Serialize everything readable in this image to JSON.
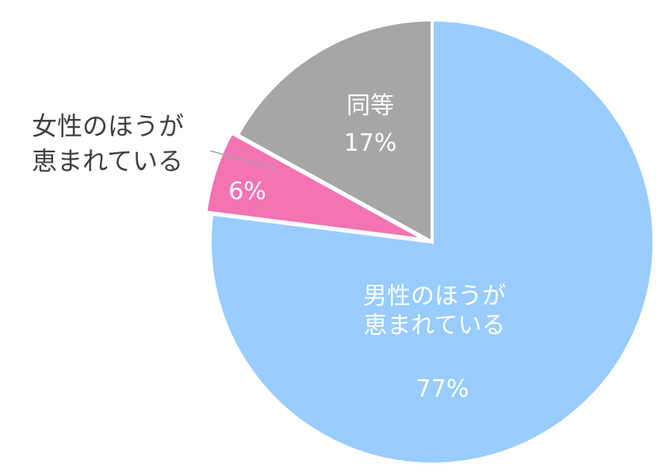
{
  "chart_data": {
    "type": "pie",
    "title": "",
    "start_angle_deg": 0,
    "direction": "clockwise",
    "slices": [
      {
        "label_lines": [
          "男性のほうが",
          "恵まれている"
        ],
        "value": 77,
        "value_label": "77%",
        "color": "#99CCFF",
        "label_position": "inside"
      },
      {
        "label_lines": [
          "女性のほうが",
          "恵まれている"
        ],
        "value": 6,
        "value_label": "6%",
        "color": "#F373B3",
        "label_position": "outside-left"
      },
      {
        "label_lines": [
          "同等"
        ],
        "value": 17,
        "value_label": "17%",
        "color": "#A6A6A6",
        "label_position": "inside"
      }
    ]
  }
}
